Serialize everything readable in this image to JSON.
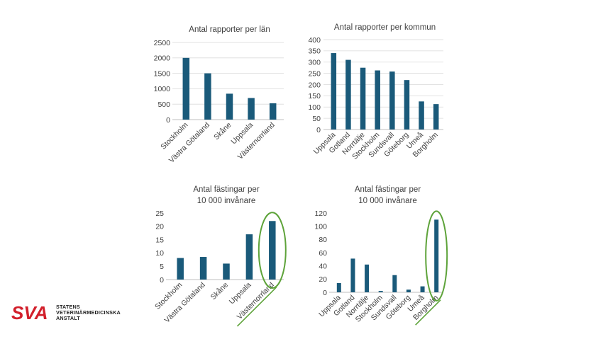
{
  "chart_data": [
    {
      "id": "c1",
      "type": "bar",
      "title": "Antal rapporter per län",
      "categories": [
        "Stockholm",
        "Västra Götaland",
        "Skåne",
        "Uppsala",
        "Västernorrland"
      ],
      "values": [
        2000,
        1500,
        840,
        700,
        530
      ],
      "ylim": [
        0,
        2500
      ],
      "yticks": [
        "0",
        "500",
        "1000",
        "1500",
        "2000",
        "2500"
      ],
      "grid": true,
      "color": "#1a5a7a"
    },
    {
      "id": "c2",
      "type": "bar",
      "title": "Antal rapporter per kommun",
      "categories": [
        "Uppsala",
        "Gotland",
        "Norrtälje",
        "Stockholm",
        "Sundsvall",
        "Göteborg",
        "Umeå",
        "Borgholm"
      ],
      "values": [
        340,
        310,
        275,
        263,
        258,
        220,
        125,
        113
      ],
      "ylim": [
        0,
        400
      ],
      "yticks": [
        "0",
        "50",
        "100",
        "150",
        "200",
        "250",
        "300",
        "350",
        "400"
      ],
      "grid": true,
      "color": "#1a5a7a"
    },
    {
      "id": "c3",
      "type": "bar",
      "title": [
        "Antal fästingar per",
        "10 000 invånare"
      ],
      "categories": [
        "Stockholm",
        "Västra Götaland",
        "Skåne",
        "Uppsala",
        "Västernorrland"
      ],
      "values": [
        8.1,
        8.5,
        6,
        17,
        22
      ],
      "ylim": [
        0,
        25
      ],
      "yticks": [
        "0",
        "5",
        "10",
        "15",
        "20",
        "25"
      ],
      "grid": false,
      "color": "#1a5a7a",
      "highlight": {
        "category": "Västernorrland",
        "color": "#5ea33a"
      }
    },
    {
      "id": "c4",
      "type": "bar",
      "title": [
        "Antal fästingar per",
        "10 000 invånare"
      ],
      "categories": [
        "Uppsala",
        "Gotland",
        "Norrtälje",
        "Stockholm",
        "Sundsvall",
        "Göteborg",
        "Umeå",
        "Borgholm"
      ],
      "values": [
        14,
        51,
        42,
        2,
        26,
        4,
        9,
        110
      ],
      "ylim": [
        0,
        120
      ],
      "yticks": [
        "0",
        "20",
        "40",
        "60",
        "80",
        "100",
        "120"
      ],
      "grid": false,
      "color": "#1a5a7a",
      "highlight": {
        "category": "Borgholm",
        "color": "#5ea33a"
      }
    }
  ],
  "logo": {
    "mark": "SVA",
    "lines": [
      "STATENS",
      "VETERINÄRMEDICINSKA",
      "ANSTALT"
    ],
    "color": "#d21f2b"
  }
}
